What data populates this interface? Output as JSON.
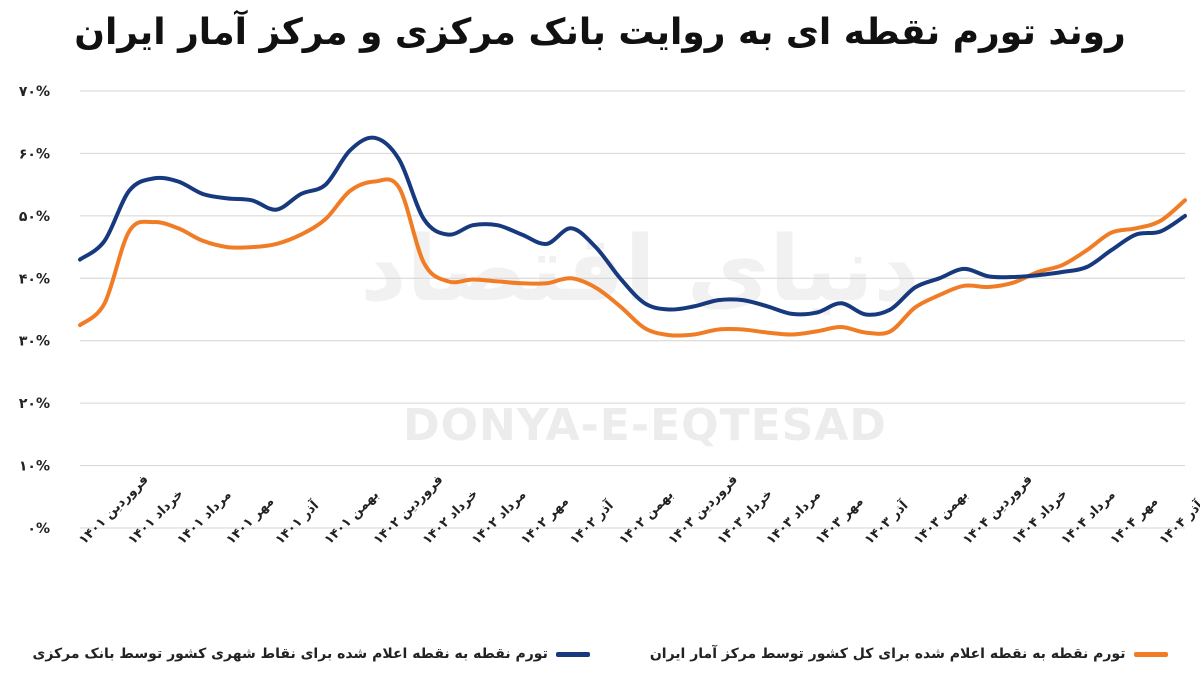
{
  "title": "روند تورم نقطه ای به روایت بانک مرکزی و مرکز آمار ایران",
  "watermark": {
    "latin": "DONYA-E-EQTESAD",
    "persian": "دنیای اقتصاد"
  },
  "chart_data": {
    "type": "line",
    "title": "روند تورم نقطه ای به روایت بانک مرکزی و مرکز آمار ایران",
    "ylim": [
      0,
      70
    ],
    "y_ticks": [
      0,
      10,
      20,
      30,
      40,
      50,
      60,
      70
    ],
    "y_tick_labels": [
      "۰%",
      "۱۰%",
      "۲۰%",
      "۳۰%",
      "۴۰%",
      "۵۰%",
      "۶۰%",
      "۷۰%"
    ],
    "grid": true,
    "legend_position": "bottom",
    "x_tick_labels": [
      "فروردین ۱۴۰۱",
      "خرداد ۱۴۰۱",
      "مرداد ۱۴۰۱",
      "مهر ۱۴۰۱",
      "آذر ۱۴۰۱",
      "بهمن ۱۴۰۱",
      "فروردین ۱۴۰۲",
      "خرداد ۱۴۰۲",
      "مرداد ۱۴۰۲",
      "مهر ۱۴۰۲",
      "آذر ۱۴۰۲",
      "بهمن ۱۴۰۲",
      "فروردین ۱۴۰۳",
      "خرداد ۱۴۰۳",
      "مرداد ۱۴۰۳",
      "مهر ۱۴۰۳",
      "آذر ۱۴۰۳",
      "بهمن ۱۴۰۳",
      "فروردین ۱۴۰۴",
      "خرداد ۱۴۰۴",
      "مرداد ۱۴۰۴",
      "مهر ۱۴۰۴",
      "آذر ۱۴۰۴"
    ],
    "x_tick_positions": [
      0,
      2,
      4,
      6,
      8,
      10,
      12,
      14,
      16,
      18,
      20,
      22,
      24,
      26,
      28,
      30,
      32,
      34,
      36,
      38,
      40,
      42,
      44
    ],
    "series": [
      {
        "name": "تورم نقطه به نقطه اعلام شده برای نقاط شهری کشور توسط بانک مرکزی",
        "color": "#17397e",
        "values": [
          43,
          46,
          54,
          56,
          55.5,
          53.5,
          52.8,
          52.5,
          51,
          53.5,
          55,
          60.5,
          62.5,
          59,
          49.5,
          47,
          48.5,
          48.5,
          47,
          45.5,
          48,
          45,
          40,
          36,
          35,
          35.5,
          36.5,
          36.5,
          35.5,
          34.3,
          34.5,
          36,
          34.2,
          35,
          38.5,
          40,
          41.5,
          40.3,
          40.2,
          40.5,
          41,
          41.8,
          44.5,
          47,
          47.5,
          50
        ]
      },
      {
        "name": "تورم نقطه به نقطه اعلام شده برای کل کشور توسط مرکز آمار ایران",
        "color": "#f07d26",
        "values": [
          32.5,
          36,
          47.5,
          49,
          48,
          46,
          45,
          45,
          45.5,
          47,
          49.5,
          54,
          55.5,
          54.5,
          42.5,
          39.5,
          39.8,
          39.5,
          39.2,
          39.2,
          40,
          38.5,
          35.5,
          32,
          30.9,
          31,
          31.8,
          31.8,
          31.3,
          31,
          31.5,
          32.2,
          31.3,
          31.5,
          35.3,
          37.3,
          38.8,
          38.6,
          39.3,
          41,
          42.1,
          44.5,
          47.3,
          48,
          49.2,
          52.5
        ]
      }
    ]
  }
}
